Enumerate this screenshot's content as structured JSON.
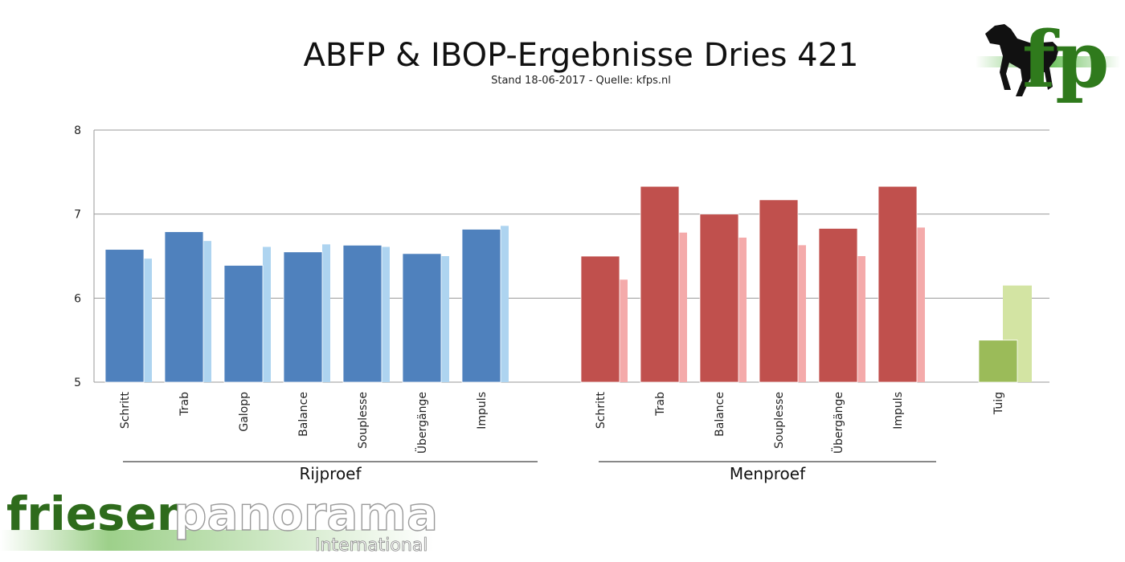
{
  "header": {
    "title": "ABFP & IBOP-Ergebnisse Dries 421",
    "subtitle": "Stand 18-06-2017 - Quelle: kfps.nl"
  },
  "logos": {
    "kfp_letters": "fp",
    "brand_left": "friesen",
    "brand_right": "panorama",
    "brand_sub": "International"
  },
  "chart_data": {
    "type": "bar",
    "title": "ABFP & IBOP-Ergebnisse Dries 421",
    "subtitle": "Stand 18-06-2017 - Quelle: kfps.nl",
    "ylim": [
      5,
      8
    ],
    "yticks": [
      5,
      6,
      7,
      8
    ],
    "grid": true,
    "groups": [
      {
        "label": "Rijproef",
        "categories": [
          "Schritt",
          "Trab",
          "Galopp",
          "Balance",
          "Souplesse",
          "Übergänge",
          "Impuls"
        ],
        "values": [
          6.58,
          6.79,
          6.39,
          6.55,
          6.63,
          6.53,
          6.82
        ],
        "reference_values": [
          6.47,
          6.68,
          6.61,
          6.64,
          6.61,
          6.5,
          6.86
        ],
        "color": "#4f81bd",
        "reference_color": "#aed4f0"
      },
      {
        "label": "Menproef",
        "categories": [
          "Schritt",
          "Trab",
          "Balance",
          "Souplesse",
          "Übergänge",
          "Impuls"
        ],
        "values": [
          6.5,
          7.33,
          7.0,
          7.17,
          6.83,
          7.33
        ],
        "reference_values": [
          6.22,
          6.78,
          6.72,
          6.63,
          6.5,
          6.84
        ],
        "color": "#c0504d",
        "reference_color": "#f4aaaa"
      },
      {
        "label": "",
        "categories": [
          "Tuig"
        ],
        "values": [
          5.5
        ],
        "reference_values": [
          6.15
        ],
        "color": "#9bbb59",
        "reference_color": "#d3e4a3"
      }
    ]
  }
}
